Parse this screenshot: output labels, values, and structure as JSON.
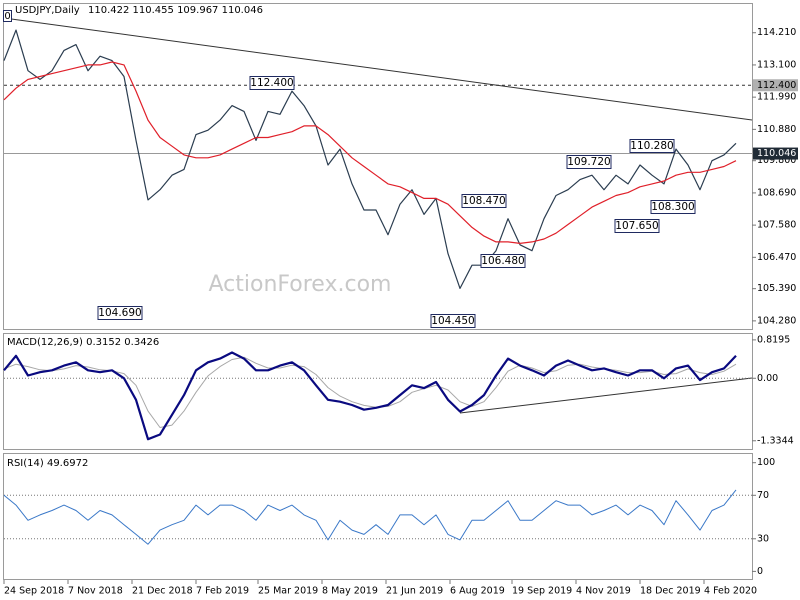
{
  "chart_data": [
    {
      "type": "line",
      "title": "USDJPY,Daily",
      "ohlc": "110.422 110.455 109.967 110.046",
      "marker_label": "0",
      "watermark": "ActionForex.com",
      "xlim": [
        0,
        374
      ],
      "ylim": [
        104.0,
        115.2
      ],
      "yticks": [
        {
          "value": 114.21,
          "label": "114.210"
        },
        {
          "value": 113.1,
          "label": "113.100"
        },
        {
          "value": 111.99,
          "label": "111.990"
        },
        {
          "value": 110.88,
          "label": "110.880"
        },
        {
          "value": 109.8,
          "label": "109.800"
        },
        {
          "value": 108.69,
          "label": "108.690"
        },
        {
          "value": 107.58,
          "label": "107.580"
        },
        {
          "value": 106.47,
          "label": "106.470"
        },
        {
          "value": 105.39,
          "label": "105.390"
        },
        {
          "value": 104.28,
          "label": "104.280"
        }
      ],
      "ref_lines": [
        {
          "value": 112.4,
          "label": "112.400",
          "style": "dashed"
        },
        {
          "value": 110.046,
          "label": "110.046",
          "style": "current"
        }
      ],
      "annotations": [
        "112.400",
        "104.690",
        "109.720",
        "110.280",
        "108.470",
        "106.480",
        "104.450",
        "107.650",
        "108.300"
      ],
      "x": [
        0,
        6,
        12,
        18,
        24,
        30,
        36,
        42,
        48,
        54,
        60,
        66,
        72,
        78,
        84,
        90,
        96,
        102,
        108,
        114,
        120,
        126,
        132,
        138,
        144,
        150,
        156,
        162,
        168,
        174,
        180,
        186,
        192,
        198,
        204,
        210,
        216,
        222,
        228,
        234,
        240,
        246,
        252,
        258,
        264,
        270,
        276,
        282,
        288,
        294,
        300,
        306,
        312,
        318,
        324,
        330,
        336,
        342,
        348,
        354,
        360,
        366
      ],
      "series": [
        {
          "name": "USDJPY",
          "color": "#2b3d50",
          "width": 1.2,
          "values": [
            113.25,
            114.3,
            112.9,
            112.6,
            112.9,
            113.6,
            113.8,
            112.9,
            113.4,
            113.25,
            112.7,
            110.5,
            108.45,
            108.8,
            109.3,
            109.5,
            110.7,
            110.85,
            111.2,
            111.7,
            111.5,
            110.5,
            111.5,
            111.4,
            112.2,
            111.7,
            111.0,
            109.65,
            110.2,
            109.0,
            108.1,
            108.1,
            107.25,
            108.3,
            108.8,
            107.95,
            108.5,
            106.6,
            105.4,
            106.2,
            106.2,
            106.7,
            107.8,
            106.9,
            106.7,
            107.8,
            108.6,
            108.8,
            109.15,
            109.3,
            108.8,
            109.3,
            109.0,
            109.65,
            109.3,
            109.0,
            110.2,
            109.65,
            108.8,
            109.8,
            110.0,
            110.4
          ]
        },
        {
          "name": "MA",
          "color": "#e0202a",
          "width": 1.2,
          "values": [
            111.9,
            112.3,
            112.6,
            112.7,
            112.8,
            112.9,
            113.0,
            113.1,
            113.1,
            113.2,
            113.1,
            112.2,
            111.2,
            110.6,
            110.3,
            110.0,
            109.9,
            109.9,
            110.0,
            110.2,
            110.4,
            110.6,
            110.6,
            110.7,
            110.8,
            111.0,
            111.0,
            110.7,
            110.3,
            109.9,
            109.6,
            109.3,
            109.0,
            108.9,
            108.7,
            108.5,
            108.5,
            108.3,
            107.9,
            107.5,
            107.2,
            107.0,
            107.0,
            106.95,
            107.0,
            107.1,
            107.3,
            107.6,
            107.9,
            108.2,
            108.4,
            108.6,
            108.7,
            108.9,
            109.0,
            109.1,
            109.3,
            109.4,
            109.4,
            109.5,
            109.6,
            109.8
          ]
        }
      ]
    },
    {
      "type": "line",
      "title": "MACD(12,26,9) 0.3152 0.3426",
      "xlim": [
        0,
        374
      ],
      "ylim": [
        -1.51,
        0.945
      ],
      "yticks": [
        0.8195,
        {
          "value": 0,
          "label": "0.00"
        },
        -1.3344
      ],
      "levels": [
        0
      ],
      "x": [
        0,
        6,
        12,
        18,
        24,
        30,
        36,
        42,
        48,
        54,
        60,
        66,
        72,
        78,
        84,
        90,
        96,
        102,
        108,
        114,
        120,
        126,
        132,
        138,
        144,
        150,
        156,
        162,
        168,
        174,
        180,
        186,
        192,
        198,
        204,
        210,
        216,
        222,
        228,
        234,
        240,
        246,
        252,
        258,
        264,
        270,
        276,
        282,
        288,
        294,
        300,
        306,
        312,
        318,
        324,
        330,
        336,
        342,
        348,
        354,
        360,
        366
      ],
      "series": [
        {
          "name": "Signal",
          "color": "#a8a8a8",
          "width": 1,
          "values": [
            0.2,
            0.3,
            0.25,
            0.18,
            0.16,
            0.2,
            0.27,
            0.24,
            0.18,
            0.16,
            0.1,
            -0.15,
            -0.7,
            -1.05,
            -1.0,
            -0.7,
            -0.3,
            0.05,
            0.25,
            0.4,
            0.45,
            0.32,
            0.22,
            0.22,
            0.28,
            0.25,
            0.08,
            -0.2,
            -0.38,
            -0.5,
            -0.58,
            -0.62,
            -0.6,
            -0.5,
            -0.3,
            -0.22,
            -0.15,
            -0.25,
            -0.5,
            -0.6,
            -0.5,
            -0.2,
            0.15,
            0.28,
            0.22,
            0.12,
            0.16,
            0.28,
            0.3,
            0.24,
            0.2,
            0.17,
            0.12,
            0.12,
            0.15,
            0.08,
            0.1,
            0.2,
            0.12,
            0.08,
            0.15,
            0.3
          ]
        },
        {
          "name": "MACD",
          "color": "#0a0a80",
          "width": 2.2,
          "values": [
            0.17,
            0.48,
            0.06,
            0.13,
            0.17,
            0.27,
            0.34,
            0.17,
            0.13,
            0.17,
            0,
            -0.46,
            -1.3,
            -1.2,
            -0.78,
            -0.36,
            0.17,
            0.34,
            0.42,
            0.55,
            0.42,
            0.17,
            0.17,
            0.27,
            0.34,
            0.17,
            -0.15,
            -0.46,
            -0.5,
            -0.57,
            -0.67,
            -0.63,
            -0.57,
            -0.36,
            -0.15,
            -0.21,
            -0.08,
            -0.46,
            -0.71,
            -0.57,
            -0.36,
            0.06,
            0.42,
            0.27,
            0.17,
            0.06,
            0.27,
            0.38,
            0.27,
            0.17,
            0.21,
            0.13,
            0.06,
            0.17,
            0.17,
            0,
            0.21,
            0.27,
            -0.04,
            0.13,
            0.21,
            0.48
          ]
        }
      ]
    },
    {
      "type": "line",
      "title": "RSI(14) 49.6972",
      "xlim": [
        0,
        374
      ],
      "ylim": [
        -7,
        108
      ],
      "yticks": [
        100,
        70,
        30,
        0
      ],
      "levels": [
        70,
        30
      ],
      "xticks": [
        {
          "value": 0,
          "label": "24 Sep 2018"
        },
        {
          "value": 32,
          "label": "7 Nov 2018"
        },
        {
          "value": 64,
          "label": "21 Dec 2018"
        },
        {
          "value": 96,
          "label": "7 Feb 2019"
        },
        {
          "value": 127,
          "label": "25 Mar 2019"
        },
        {
          "value": 159,
          "label": "8 May 2019"
        },
        {
          "value": 191,
          "label": "21 Jun 2019"
        },
        {
          "value": 223,
          "label": "6 Aug 2019"
        },
        {
          "value": 254,
          "label": "19 Sep 2019"
        },
        {
          "value": 286,
          "label": "4 Nov 2019"
        },
        {
          "value": 318,
          "label": "18 Dec 2019"
        },
        {
          "value": 350,
          "label": "4 Feb 2020"
        }
      ],
      "x": [
        0,
        6,
        12,
        18,
        24,
        30,
        36,
        42,
        48,
        54,
        60,
        66,
        72,
        78,
        84,
        90,
        96,
        102,
        108,
        114,
        120,
        126,
        132,
        138,
        144,
        150,
        156,
        162,
        168,
        174,
        180,
        186,
        192,
        198,
        204,
        210,
        216,
        222,
        228,
        234,
        240,
        246,
        252,
        258,
        264,
        270,
        276,
        282,
        288,
        294,
        300,
        306,
        312,
        318,
        324,
        330,
        336,
        342,
        348,
        354,
        360,
        366
      ],
      "series": [
        {
          "name": "RSI",
          "color": "#3a78c8",
          "width": 1,
          "values": [
            70,
            61,
            47,
            52,
            56,
            61,
            56,
            47,
            56,
            52,
            43,
            34,
            25,
            38,
            43,
            47,
            61,
            52,
            61,
            61,
            56,
            47,
            61,
            56,
            61,
            52,
            47,
            29,
            47,
            38,
            34,
            43,
            34,
            52,
            52,
            43,
            52,
            34,
            29,
            47,
            47,
            56,
            65,
            47,
            47,
            56,
            65,
            61,
            61,
            52,
            56,
            61,
            52,
            61,
            56,
            43,
            65,
            52,
            38,
            56,
            61,
            75
          ]
        }
      ]
    }
  ]
}
